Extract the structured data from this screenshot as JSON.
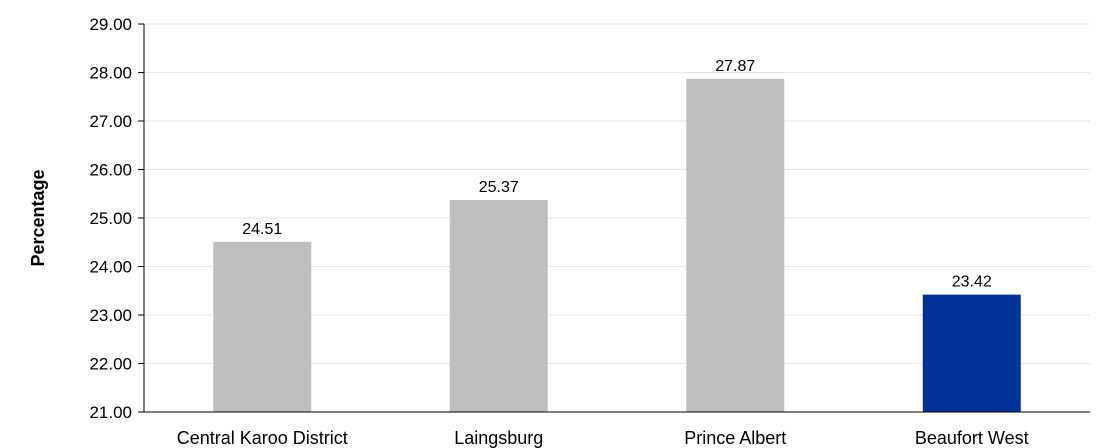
{
  "chart_data": {
    "type": "bar",
    "title": "",
    "xlabel": "",
    "ylabel": "Percentage",
    "ylim": [
      21,
      29
    ],
    "ytick_step": 1,
    "ytick_decimals": 2,
    "grid": true,
    "categories": [
      "Central Karoo District",
      "Laingsburg",
      "Prince Albert",
      "Beaufort West"
    ],
    "values": [
      24.51,
      25.37,
      27.87,
      23.42
    ],
    "data_labels": [
      "24.51",
      "25.37",
      "27.87",
      "23.42"
    ],
    "bar_colors": [
      "#bfbfbf",
      "#bfbfbf",
      "#bfbfbf",
      "#003399"
    ],
    "gridline_color": "#e6e6e6",
    "axis_color": "#000000"
  }
}
